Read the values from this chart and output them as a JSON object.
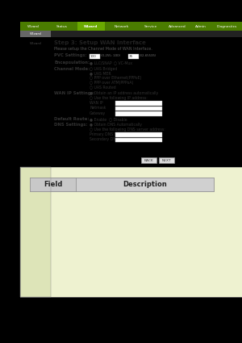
{
  "bg_color": "#000000",
  "nav_bg": "#4a7c00",
  "nav_active_bg": "#6aaa00",
  "nav_items": [
    "Wizard",
    "Status",
    "Wizard",
    "Network",
    "Service",
    "Advanced",
    "Admin",
    "Diagnostics"
  ],
  "subnav_bg": "#222222",
  "subnav_text": "Wizard",
  "content_bg": "#eef2d0",
  "sidebar_bg": "#dde4b8",
  "sidebar_text": "Wizard",
  "title": "Step 3: Setup WAN Interface",
  "subtitle": "Please setup the Channel Mode of WAN Interface.",
  "table_header_field": "Field",
  "table_header_desc": "Description",
  "table_bg": "#cccccc",
  "table_border": "#888888",
  "input_bg": "#ffffff",
  "input_border": "#aaaaaa"
}
